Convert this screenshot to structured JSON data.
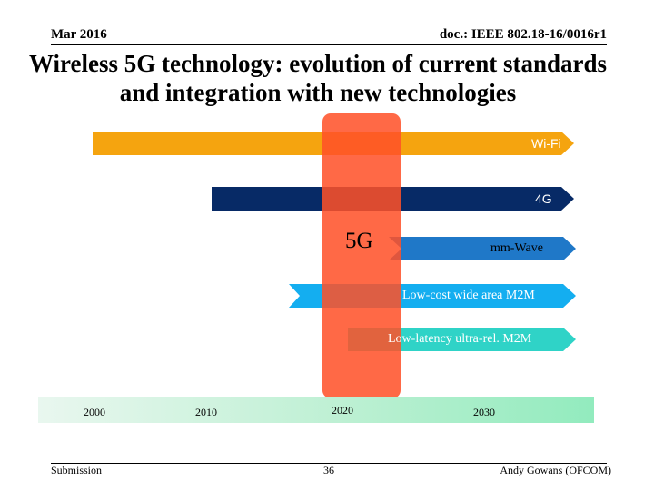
{
  "header": {
    "date": "Mar 2016",
    "doc_id": "doc.: IEEE 802.18-16/0016r1"
  },
  "title": "Wireless 5G technology: evolution of current standards and integration with new technologies",
  "diagram": {
    "bands": [
      {
        "label": "Wi-Fi",
        "color": "#f5a40f"
      },
      {
        "label": "4G",
        "color": "#072a66"
      },
      {
        "label": "mm-Wave",
        "color": "#1f78c8"
      },
      {
        "label": "Low-cost wide area M2M",
        "color": "#14aef0"
      },
      {
        "label": "Low-latency ultra-rel. M2M",
        "color": "#2fd3c7"
      }
    ],
    "highlight": {
      "label": "5G",
      "color": "#ff5028"
    },
    "timeline": {
      "years": [
        "2000",
        "2010",
        "2020",
        "2030"
      ]
    }
  },
  "footer": {
    "left": "Submission",
    "page": "36",
    "author": "Andy Gowans (OFCOM)"
  }
}
